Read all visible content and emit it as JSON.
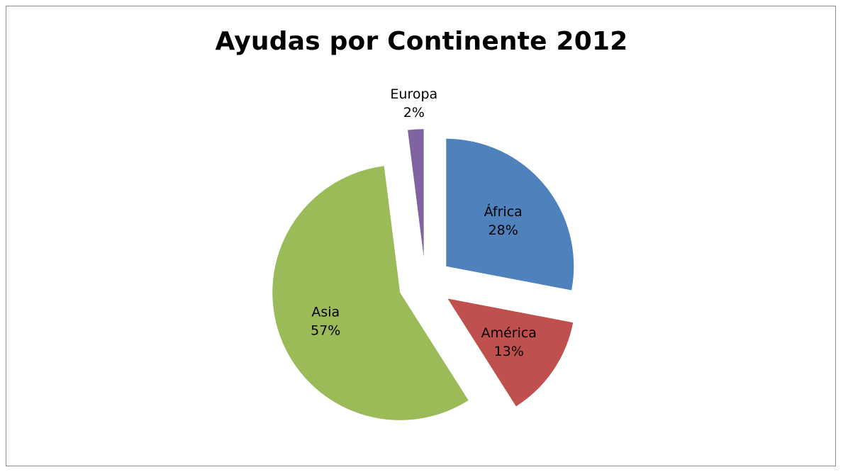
{
  "chart_data": {
    "type": "pie",
    "title": "Ayudas por Continente 2012",
    "exploded": true,
    "slices": [
      {
        "label": "África",
        "percent_label": "28%",
        "value": 28,
        "color": "#4f81bd"
      },
      {
        "label": "América",
        "percent_label": "13%",
        "value": 13,
        "color": "#c0504d"
      },
      {
        "label": "Asia",
        "percent_label": "57%",
        "value": 57,
        "color": "#9bbb59"
      },
      {
        "label": "Europa",
        "percent_label": "2%",
        "value": 2,
        "color": "#8064a2"
      }
    ],
    "legend": "none"
  }
}
